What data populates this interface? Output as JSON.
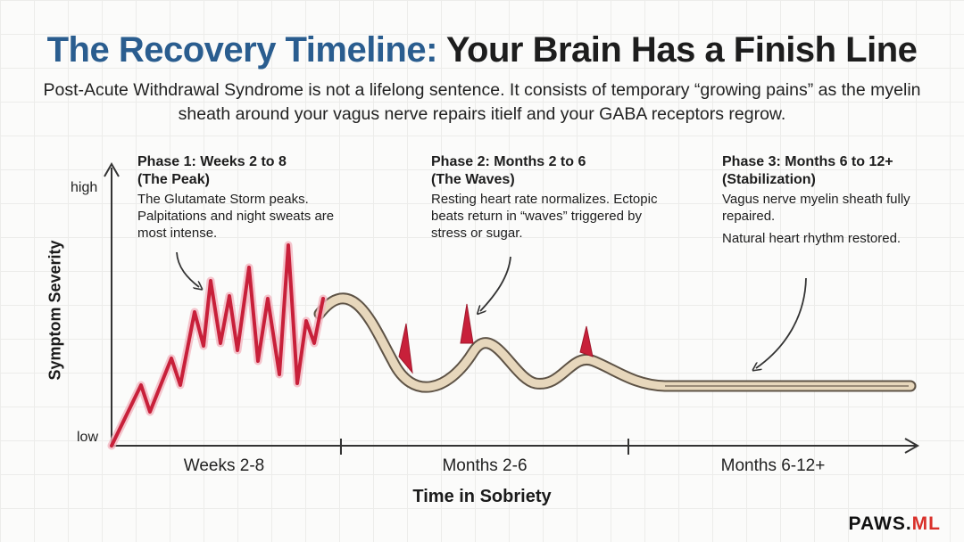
{
  "title": {
    "part1": "The Recovery Timeline:",
    "part2": "Your Brain Has a Finish Line"
  },
  "subtitle": "Post-Acute Withdrawal Syndrome is not a lifelong sentence. It consists of temporary “growing pains” as the myelin sheath around your vagus nerve repairs itielf and your GABA receptors regrow.",
  "axes": {
    "y_label": "Symptom Severity",
    "y_high": "high",
    "y_low": "low",
    "x_label": "Time in Sobriety",
    "x_ticks": [
      "Weeks 2-8",
      "Months 2-6",
      "Months 6-12+"
    ]
  },
  "phases": [
    {
      "title_line1": "Phase 1: Weeks 2 to 8",
      "title_line2": "(The Peak)",
      "text": "The Glutamate Storm peaks. Palpitations and night sweats are most intense."
    },
    {
      "title_line1": "Phase 2: Months 2 to 6",
      "title_line2": "(The Waves)",
      "text": "Resting heart rate normalizes. Ectopic beats return in “waves” triggered by stress or sugar."
    },
    {
      "title_line1": "Phase 3: Months 6 to 12+",
      "title_line2": "(Stabilization)",
      "text": "Vagus nerve myelin sheath fully repaired.",
      "text2": "Natural heart rhythm restored."
    }
  ],
  "brand": {
    "name": "PAWS.",
    "suffix": "ML"
  },
  "colors": {
    "spike_red": "#c8203a",
    "band_tan": "#e7d7bc",
    "band_edge": "#5e5346",
    "title_blue": "#2a5d8f"
  }
}
